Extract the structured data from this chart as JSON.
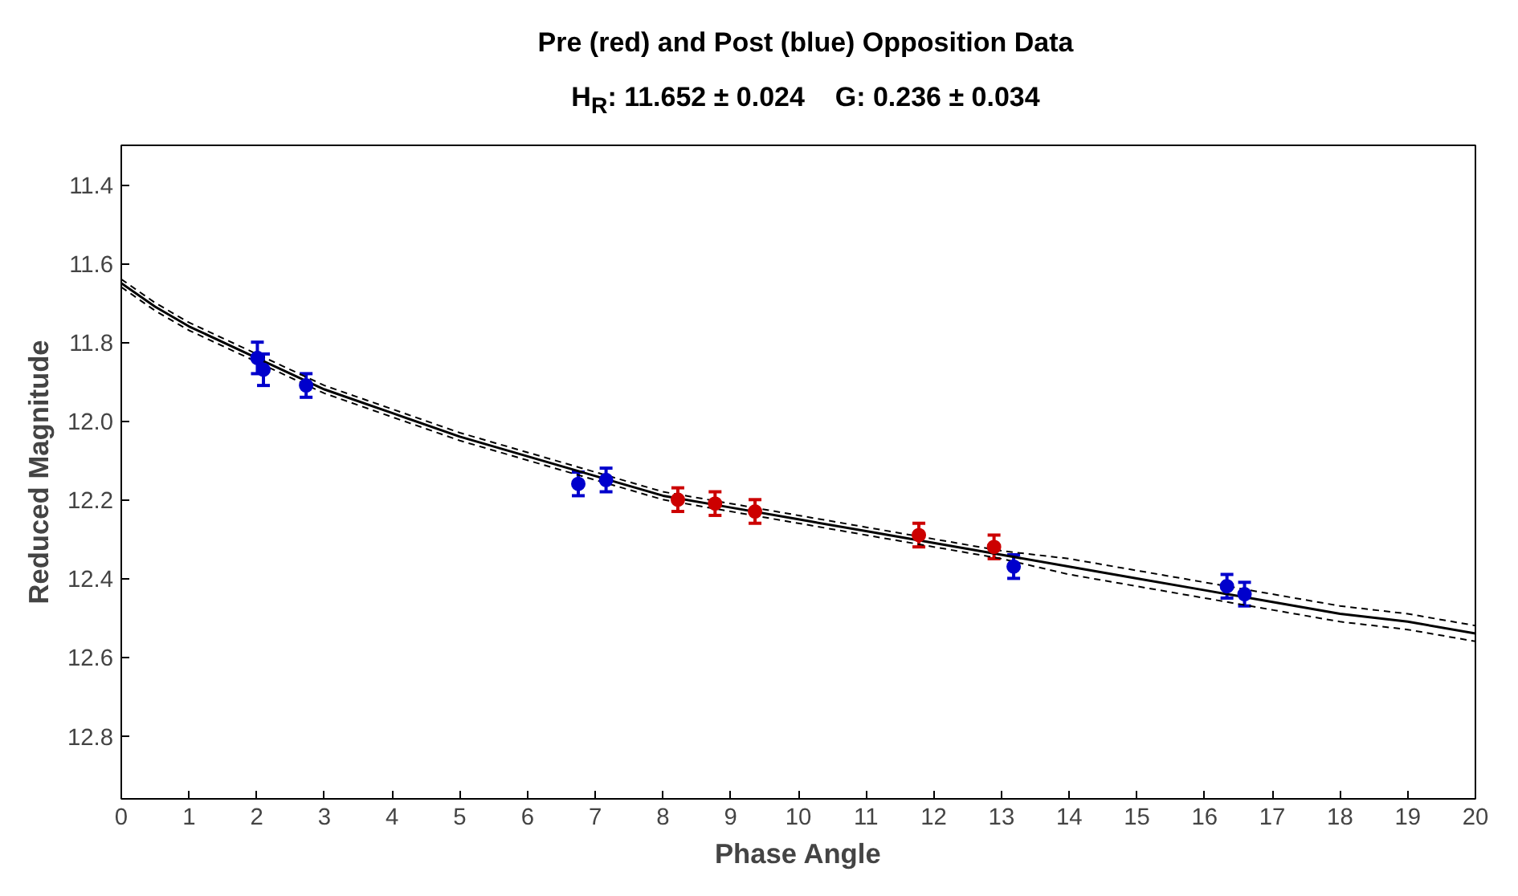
{
  "chart_data": {
    "type": "scatter",
    "title": "Pre (red) and Post (blue) Opposition Data",
    "subtitle": "H$_{R}$: 11.652 ± 0.024     G: 0.236 ± 0.034",
    "xlabel": "Phase Angle",
    "ylabel": "Reduced Magnitude",
    "xlim": [
      0,
      20
    ],
    "xticks": [
      0,
      1,
      2,
      3,
      4,
      5,
      6,
      7,
      8,
      9,
      10,
      11,
      12,
      13,
      14,
      15,
      16,
      17,
      18,
      19,
      20
    ],
    "ylim": [
      12.96,
      11.3
    ],
    "yticks": [
      11.4,
      11.6,
      11.8,
      {
        "value": 12,
        "label": "12.0"
      },
      12.2,
      12.4,
      12.6,
      12.8
    ],
    "grid": false,
    "series": [
      {
        "type": "line",
        "color": "#000000",
        "line_style": "solid",
        "x": [
          0,
          0.5,
          1,
          2,
          3,
          4,
          5,
          6,
          7,
          8,
          9,
          10,
          11,
          12,
          13,
          14,
          15,
          16,
          17,
          18,
          19,
          20
        ],
        "values": [
          11.65,
          11.71,
          11.76,
          11.84,
          11.92,
          11.98,
          12.04,
          12.09,
          12.14,
          12.19,
          12.22,
          12.25,
          12.28,
          12.31,
          12.34,
          12.37,
          12.4,
          12.43,
          12.46,
          12.49,
          12.51,
          12.54
        ]
      },
      {
        "type": "line",
        "color": "#000000",
        "line_style": "dashed",
        "x": [
          0,
          0.5,
          1,
          2,
          3,
          4,
          5,
          6,
          7,
          8,
          9,
          10,
          11,
          12,
          13,
          14,
          15,
          16,
          17,
          18,
          19,
          20
        ],
        "values": [
          11.64,
          11.7,
          11.75,
          11.83,
          11.91,
          11.97,
          12.03,
          12.08,
          12.13,
          12.18,
          12.21,
          12.24,
          12.27,
          12.3,
          12.33,
          12.35,
          12.38,
          12.41,
          12.44,
          12.47,
          12.49,
          12.52
        ]
      },
      {
        "type": "line",
        "color": "#000000",
        "line_style": "dashed",
        "x": [
          0,
          0.5,
          1,
          2,
          3,
          4,
          5,
          6,
          7,
          8,
          9,
          10,
          11,
          12,
          13,
          14,
          15,
          16,
          17,
          18,
          19,
          20
        ],
        "values": [
          11.66,
          11.72,
          11.77,
          11.85,
          11.93,
          11.99,
          12.05,
          12.1,
          12.15,
          12.2,
          12.23,
          12.26,
          12.29,
          12.32,
          12.35,
          12.39,
          12.42,
          12.45,
          12.48,
          12.51,
          12.53,
          12.56
        ]
      },
      {
        "marker": "circle",
        "color": "#cc0000",
        "x": [
          8.22,
          8.77,
          9.36,
          11.78,
          12.89
        ],
        "values": [
          12.2,
          12.21,
          12.23,
          12.29,
          12.32
        ],
        "errors": [
          0.03,
          0.03,
          0.03,
          0.03,
          0.03
        ]
      },
      {
        "marker": "circle",
        "color": "#0000cc",
        "x": [
          2.01,
          2.1,
          2.73,
          6.75,
          7.16,
          13.18,
          16.33,
          16.59
        ],
        "values": [
          11.84,
          11.87,
          11.91,
          12.16,
          12.15,
          12.37,
          12.42,
          12.44
        ],
        "errors": [
          0.04,
          0.04,
          0.03,
          0.03,
          0.03,
          0.03,
          0.03,
          0.03
        ]
      }
    ]
  }
}
